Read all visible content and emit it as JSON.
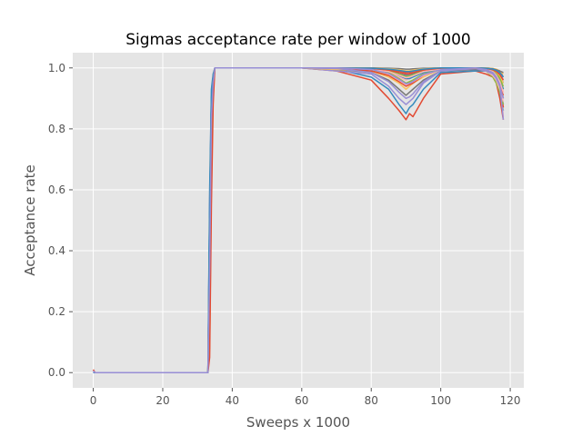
{
  "chart_data": {
    "type": "line",
    "title": "Sigmas acceptance rate per window of 1000",
    "xlabel": "Sweeps x 1000",
    "ylabel": "Acceptance rate",
    "xlim": [
      -5.9,
      123.9
    ],
    "ylim": [
      -0.05,
      1.05
    ],
    "x_ticks": [
      0,
      20,
      40,
      60,
      80,
      100,
      120
    ],
    "x_tick_labels": [
      "0",
      "20",
      "40",
      "60",
      "80",
      "100",
      "120"
    ],
    "y_ticks": [
      0.0,
      0.2,
      0.4,
      0.6,
      0.8,
      1.0
    ],
    "y_tick_labels": [
      "0.0",
      "0.2",
      "0.4",
      "0.6",
      "0.8",
      "1.0"
    ],
    "grid": true,
    "background": "#e5e5e5",
    "series_count": 24,
    "colors": [
      "#e24a33",
      "#348abd",
      "#988ed5",
      "#777777",
      "#fbc15e",
      "#8eba42",
      "#ffb5b8"
    ],
    "series": [
      {
        "x": [
          0,
          0.5,
          1,
          33,
          33.5,
          34,
          34.5,
          35,
          60,
          70,
          80,
          85,
          88,
          90,
          91,
          92,
          95,
          100,
          110,
          113,
          115,
          116,
          117,
          118
        ],
        "values": [
          0.01,
          0,
          0,
          0,
          0.3,
          0.8,
          0.95,
          1.0,
          1.0,
          0.99,
          0.96,
          0.9,
          0.86,
          0.83,
          0.85,
          0.84,
          0.9,
          0.98,
          0.99,
          0.98,
          0.97,
          0.95,
          0.9,
          0.83
        ]
      },
      {
        "x": [
          0,
          0.5,
          1,
          33,
          33.5,
          34,
          34.5,
          35,
          60,
          70,
          80,
          85,
          88,
          90,
          91,
          92,
          95,
          100,
          110,
          113,
          115,
          116,
          117,
          118
        ],
        "values": [
          0.0,
          0,
          0,
          0,
          0.55,
          0.9,
          0.97,
          1.0,
          1.0,
          0.995,
          0.97,
          0.93,
          0.88,
          0.85,
          0.87,
          0.88,
          0.93,
          0.985,
          0.99,
          0.99,
          0.98,
          0.96,
          0.92,
          0.86
        ]
      },
      {
        "x": [
          0,
          0.5,
          1,
          33,
          33.5,
          34,
          34.5,
          35,
          60,
          70,
          80,
          85,
          88,
          90,
          91,
          92,
          95,
          100,
          110,
          113,
          115,
          116,
          117,
          118
        ],
        "values": [
          0.005,
          0,
          0,
          0,
          0.2,
          0.75,
          0.93,
          1.0,
          1.0,
          0.99,
          0.98,
          0.94,
          0.9,
          0.88,
          0.89,
          0.9,
          0.95,
          0.99,
          0.995,
          0.99,
          0.985,
          0.97,
          0.94,
          0.88
        ]
      },
      {
        "x": [
          0,
          0.5,
          1,
          33,
          33.5,
          34,
          34.5,
          35,
          60,
          70,
          80,
          85,
          88,
          90,
          91,
          92,
          95,
          100,
          110,
          113,
          115,
          116,
          117,
          118
        ],
        "values": [
          0.0,
          0,
          0,
          0,
          0.4,
          0.85,
          0.96,
          1.0,
          1.0,
          0.995,
          0.985,
          0.96,
          0.93,
          0.91,
          0.92,
          0.93,
          0.96,
          0.99,
          0.995,
          0.99,
          0.98,
          0.97,
          0.95,
          0.9
        ]
      },
      {
        "x": [
          0,
          0.5,
          1,
          33,
          33.5,
          34,
          34.5,
          35,
          60,
          70,
          80,
          85,
          88,
          90,
          91,
          92,
          95,
          100,
          110,
          113,
          115,
          116,
          117,
          118
        ],
        "values": [
          0.0,
          0,
          0,
          0,
          0.08,
          0.6,
          0.9,
          1.0,
          1.0,
          0.995,
          0.99,
          0.97,
          0.95,
          0.93,
          0.94,
          0.95,
          0.97,
          0.995,
          1.0,
          0.995,
          0.99,
          0.98,
          0.96,
          0.92
        ]
      },
      {
        "x": [
          0,
          0.5,
          1,
          33,
          33.5,
          34,
          34.5,
          35,
          60,
          70,
          80,
          85,
          88,
          90,
          91,
          92,
          95,
          100,
          110,
          113,
          115,
          116,
          117,
          118
        ],
        "values": [
          0.0,
          0,
          0,
          0,
          0.33,
          0.82,
          0.95,
          1.0,
          1.0,
          1.0,
          0.99,
          0.98,
          0.96,
          0.95,
          0.95,
          0.96,
          0.98,
          0.995,
          1.0,
          0.995,
          0.99,
          0.985,
          0.97,
          0.93
        ]
      },
      {
        "x": [
          0,
          0.5,
          1,
          33,
          33.5,
          34,
          34.5,
          35,
          60,
          70,
          80,
          85,
          88,
          90,
          91,
          92,
          95,
          100,
          110,
          113,
          115,
          116,
          117,
          118
        ],
        "values": [
          0.0,
          0,
          0,
          0,
          0.57,
          0.92,
          0.98,
          1.0,
          1.0,
          1.0,
          0.995,
          0.985,
          0.97,
          0.96,
          0.965,
          0.97,
          0.985,
          1.0,
          1.0,
          0.995,
          0.99,
          0.98,
          0.96,
          0.84
        ]
      },
      {
        "x": [
          0,
          0.5,
          1,
          33,
          33.5,
          34,
          34.5,
          35,
          60,
          70,
          80,
          85,
          88,
          90,
          91,
          92,
          95,
          100,
          110,
          113,
          115,
          116,
          117,
          118
        ],
        "values": [
          0.0,
          0,
          0,
          0,
          0.15,
          0.7,
          0.92,
          1.0,
          1.0,
          1.0,
          0.99,
          0.975,
          0.955,
          0.94,
          0.945,
          0.95,
          0.975,
          0.995,
          1.0,
          0.995,
          0.99,
          0.975,
          0.955,
          0.87
        ]
      },
      {
        "x": [
          0,
          0.5,
          1,
          33,
          33.5,
          34,
          34.5,
          35,
          60,
          70,
          80,
          85,
          88,
          90,
          91,
          92,
          95,
          100,
          110,
          113,
          115,
          116,
          117,
          118
        ],
        "values": [
          0.0,
          0,
          0,
          0,
          0.45,
          0.88,
          0.97,
          1.0,
          1.0,
          1.0,
          0.998,
          0.99,
          0.98,
          0.975,
          0.975,
          0.98,
          0.99,
          1.0,
          1.0,
          0.998,
          0.995,
          0.99,
          0.98,
          0.95
        ]
      },
      {
        "x": [
          0,
          0.5,
          1,
          33,
          33.5,
          34,
          34.5,
          35,
          60,
          70,
          80,
          85,
          88,
          90,
          91,
          92,
          95,
          100,
          110,
          113,
          115,
          116,
          117,
          118
        ],
        "values": [
          0.0,
          0,
          0,
          0,
          0.25,
          0.78,
          0.94,
          1.0,
          1.0,
          1.0,
          0.995,
          0.99,
          0.985,
          0.98,
          0.98,
          0.985,
          0.99,
          1.0,
          1.0,
          0.998,
          0.995,
          0.99,
          0.985,
          0.96
        ]
      },
      {
        "x": [
          0,
          0.5,
          1,
          33,
          33.5,
          34,
          34.5,
          35,
          60,
          70,
          80,
          85,
          88,
          90,
          91,
          92,
          95,
          100,
          110,
          113,
          115,
          116,
          117,
          118
        ],
        "values": [
          0.0,
          0,
          0,
          0,
          0.5,
          0.89,
          0.97,
          1.0,
          1.0,
          1.0,
          0.998,
          0.995,
          0.99,
          0.985,
          0.985,
          0.99,
          0.995,
          1.0,
          1.0,
          1.0,
          0.998,
          0.995,
          0.99,
          0.97
        ]
      },
      {
        "x": [
          0,
          0.5,
          1,
          33,
          33.5,
          34,
          34.5,
          35,
          60,
          70,
          80,
          85,
          88,
          90,
          91,
          92,
          95,
          100,
          110,
          113,
          115,
          116,
          117,
          118
        ],
        "values": [
          0.0,
          0,
          0,
          0,
          0.1,
          0.65,
          0.91,
          1.0,
          1.0,
          1.0,
          1.0,
          0.998,
          0.995,
          0.99,
          0.99,
          0.995,
          0.998,
          1.0,
          1.0,
          1.0,
          0.998,
          0.996,
          0.99,
          0.98
        ]
      },
      {
        "x": [
          0,
          0.5,
          1,
          33,
          33.5,
          34,
          34.5,
          35,
          60,
          70,
          80,
          85,
          88,
          90,
          91,
          92,
          95,
          100,
          110,
          113,
          115,
          116,
          117,
          118
        ],
        "values": [
          0.0,
          0,
          0,
          0,
          0.35,
          0.84,
          0.96,
          1.0,
          1.0,
          1.0,
          0.997,
          0.985,
          0.965,
          0.95,
          0.955,
          0.96,
          0.98,
          0.995,
          1.0,
          0.99,
          0.97,
          0.95,
          0.92,
          0.88
        ]
      },
      {
        "x": [
          0,
          0.5,
          1,
          33,
          33.5,
          34,
          34.5,
          35,
          60,
          70,
          80,
          85,
          88,
          90,
          91,
          92,
          95,
          100,
          110,
          113,
          115,
          116,
          117,
          118
        ],
        "values": [
          0.0,
          0,
          0,
          0,
          0.42,
          0.86,
          0.96,
          1.0,
          1.0,
          1.0,
          0.996,
          0.98,
          0.96,
          0.945,
          0.95,
          0.955,
          0.975,
          0.995,
          1.0,
          0.99,
          0.975,
          0.96,
          0.93,
          0.89
        ]
      },
      {
        "x": [
          0,
          0.5,
          1,
          33,
          33.5,
          34,
          34.5,
          35,
          60,
          70,
          80,
          85,
          88,
          90,
          91,
          92,
          95,
          100,
          110,
          113,
          115,
          116,
          117,
          118
        ],
        "values": [
          0.0,
          0,
          0,
          0,
          0.22,
          0.76,
          0.93,
          1.0,
          1.0,
          1.0,
          0.999,
          0.995,
          0.99,
          0.985,
          0.985,
          0.99,
          0.995,
          1.0,
          1.0,
          0.995,
          0.985,
          0.97,
          0.94,
          0.91
        ]
      },
      {
        "x": [
          0,
          0.5,
          1,
          33,
          33.5,
          34,
          34.5,
          35,
          60,
          70,
          80,
          85,
          88,
          90,
          91,
          92,
          95,
          100,
          110,
          113,
          115,
          116,
          117,
          118
        ],
        "values": [
          0.0,
          0,
          0,
          0,
          0.6,
          0.93,
          0.98,
          1.0,
          1.0,
          1.0,
          0.998,
          0.99,
          0.975,
          0.965,
          0.965,
          0.97,
          0.985,
          0.998,
          1.0,
          0.998,
          0.99,
          0.98,
          0.96,
          0.93
        ]
      },
      {
        "x": [
          0,
          0.5,
          1,
          33,
          33.5,
          34,
          34.5,
          35,
          60,
          70,
          80,
          85,
          88,
          90,
          91,
          92,
          95,
          100,
          110,
          113,
          115,
          116,
          117,
          118
        ],
        "values": [
          0.0,
          0,
          0,
          0,
          0.3,
          0.8,
          0.95,
          1.0,
          1.0,
          0.998,
          0.985,
          0.955,
          0.92,
          0.9,
          0.905,
          0.915,
          0.955,
          0.99,
          0.998,
          0.99,
          0.98,
          0.965,
          0.94,
          0.9
        ]
      },
      {
        "x": [
          0,
          0.5,
          1,
          33,
          33.5,
          34,
          34.5,
          35,
          60,
          70,
          80,
          85,
          88,
          90,
          91,
          92,
          95,
          100,
          110,
          113,
          115,
          116,
          117,
          118
        ],
        "values": [
          0.0,
          0,
          0,
          0,
          0.18,
          0.72,
          0.92,
          1.0,
          1.0,
          1.0,
          1.0,
          0.999,
          0.998,
          0.996,
          0.996,
          0.997,
          0.999,
          1.0,
          1.0,
          0.999,
          0.997,
          0.994,
          0.99,
          0.985
        ]
      },
      {
        "x": [
          0,
          0.5,
          1,
          33,
          33.5,
          34,
          34.5,
          35,
          60,
          70,
          80,
          85,
          88,
          90,
          91,
          92,
          95,
          100,
          110,
          113,
          115,
          116,
          117,
          118
        ],
        "values": [
          0.0,
          0,
          0,
          0,
          0.48,
          0.88,
          0.97,
          1.0,
          1.0,
          1.0,
          0.999,
          0.997,
          0.994,
          0.99,
          0.99,
          0.993,
          0.997,
          1.0,
          1.0,
          0.998,
          0.992,
          0.985,
          0.975,
          0.95
        ]
      },
      {
        "x": [
          0,
          0.5,
          1,
          33,
          33.5,
          34,
          34.5,
          35,
          60,
          70,
          80,
          85,
          88,
          90,
          91,
          92,
          95,
          100,
          110,
          113,
          115,
          116,
          117,
          118
        ],
        "values": [
          0.0,
          0,
          0,
          0,
          0.28,
          0.79,
          0.94,
          1.0,
          1.0,
          1.0,
          0.997,
          0.99,
          0.98,
          0.972,
          0.974,
          0.978,
          0.99,
          0.998,
          1.0,
          0.997,
          0.99,
          0.98,
          0.965,
          0.94
        ]
      },
      {
        "x": [
          0,
          0.5,
          1,
          33,
          33.5,
          34,
          34.5,
          35,
          60,
          70,
          80,
          85,
          88,
          90,
          91,
          92,
          95,
          100,
          110,
          113,
          115,
          116,
          117,
          118
        ],
        "values": [
          0.0,
          0,
          0,
          0,
          0.38,
          0.85,
          0.96,
          1.0,
          1.0,
          1.0,
          0.996,
          0.988,
          0.976,
          0.968,
          0.97,
          0.974,
          0.988,
          0.997,
          1.0,
          0.996,
          0.988,
          0.975,
          0.955,
          0.92
        ]
      },
      {
        "x": [
          0,
          0.5,
          1,
          33,
          33.5,
          34,
          34.5,
          35,
          60,
          70,
          80,
          85,
          88,
          90,
          91,
          92,
          95,
          100,
          110,
          113,
          115,
          116,
          117,
          118
        ],
        "values": [
          0.0,
          0,
          0,
          0,
          0.05,
          0.55,
          0.88,
          1.0,
          1.0,
          1.0,
          0.998,
          0.993,
          0.985,
          0.98,
          0.98,
          0.984,
          0.993,
          0.999,
          1.0,
          0.998,
          0.994,
          0.988,
          0.978,
          0.96
        ]
      },
      {
        "x": [
          0,
          0.5,
          1,
          33,
          33.5,
          34,
          34.5,
          35,
          60,
          70,
          80,
          85,
          88,
          90,
          91,
          92,
          95,
          100,
          110,
          113,
          115,
          116,
          117,
          118
        ],
        "values": [
          0.0,
          0,
          0,
          0,
          0.52,
          0.9,
          0.97,
          1.0,
          1.0,
          1.0,
          0.999,
          0.996,
          0.992,
          0.988,
          0.988,
          0.99,
          0.996,
          1.0,
          1.0,
          0.999,
          0.996,
          0.992,
          0.985,
          0.97
        ]
      },
      {
        "x": [
          0,
          0.5,
          1,
          33,
          33.5,
          34,
          34.5,
          35,
          60,
          70,
          80,
          85,
          88,
          90,
          91,
          92,
          95,
          100,
          110,
          113,
          115,
          116,
          117,
          118
        ],
        "values": [
          0.005,
          0,
          0,
          0,
          0.34,
          0.83,
          0.95,
          1.0,
          1.0,
          1.0,
          0.995,
          0.982,
          0.962,
          0.948,
          0.95,
          0.956,
          0.978,
          0.994,
          1.0,
          0.995,
          0.985,
          0.97,
          0.945,
          0.83
        ]
      }
    ]
  }
}
